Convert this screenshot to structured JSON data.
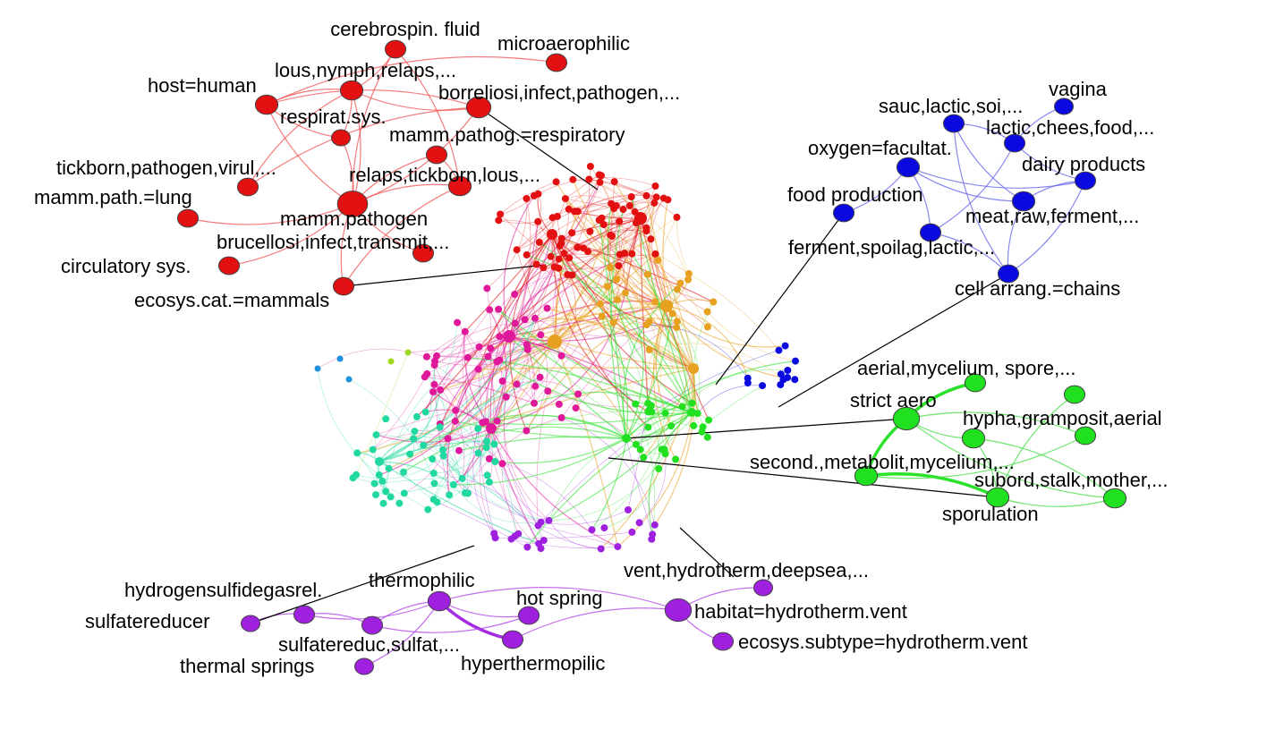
{
  "clusters": [
    {
      "id": "red",
      "color": "#e21010",
      "edge_color": "#f05050",
      "nodes": [
        "cerebrospin. fluid",
        "microaerophilic",
        "lous,nymph,relaps,...",
        "host=human",
        "borreliosi,infect,pathogen,...",
        "respirat.sys.",
        "mamm.pathog.=respiratory",
        "tickborn,pathogen,virul,...",
        "relaps,tickborn,lous,...",
        "mamm.path.=lung",
        "mamm.pathogen",
        "brucellosi,infect,transmit,...",
        "circulatory sys.",
        "ecosys.cat.=mammals"
      ],
      "edges": [
        [
          0,
          2
        ],
        [
          0,
          10
        ],
        [
          0,
          8
        ],
        [
          2,
          3
        ],
        [
          2,
          5
        ],
        [
          2,
          4
        ],
        [
          2,
          10
        ],
        [
          3,
          5
        ],
        [
          3,
          4
        ],
        [
          3,
          10
        ],
        [
          4,
          10
        ],
        [
          4,
          7
        ],
        [
          5,
          10
        ],
        [
          6,
          10
        ],
        [
          6,
          8
        ],
        [
          8,
          10
        ],
        [
          10,
          9
        ],
        [
          10,
          11
        ],
        [
          10,
          12
        ],
        [
          10,
          13
        ],
        [
          13,
          8
        ],
        [
          1,
          3
        ],
        [
          7,
          2
        ]
      ]
    },
    {
      "id": "blue",
      "color": "#0a0ae0",
      "edge_color": "#6060ee",
      "nodes": [
        "vagina",
        "sauc,lactic,soi,...",
        "lactic,chees,food,...",
        "oxygen=facultat.",
        "dairy products",
        "food production",
        "meat,raw,ferment,...",
        "ferment,spoilag,lactic,...",
        "cell arrang.=chains"
      ],
      "edges": [
        [
          3,
          5
        ],
        [
          3,
          6
        ],
        [
          3,
          7
        ],
        [
          3,
          4
        ],
        [
          1,
          2
        ],
        [
          1,
          8
        ],
        [
          2,
          0
        ],
        [
          2,
          4
        ],
        [
          2,
          7
        ],
        [
          4,
          6
        ],
        [
          4,
          8
        ],
        [
          6,
          8
        ],
        [
          7,
          8
        ],
        [
          1,
          6
        ]
      ]
    },
    {
      "id": "green",
      "color": "#20e020",
      "edge_color": "#40dd40",
      "nodes": [
        "aerial,mycelium, spore,...",
        "",
        "strict aero",
        "hypha,gramposit,aerial",
        "",
        "second.,metabolit,mycelium,...",
        "sporulation",
        "subord,stalk,mother,..."
      ],
      "edges": [
        [
          2,
          0
        ],
        [
          2,
          5
        ],
        [
          5,
          6
        ],
        [
          2,
          3
        ],
        [
          2,
          4
        ],
        [
          2,
          7
        ],
        [
          3,
          6
        ],
        [
          5,
          4
        ],
        [
          6,
          1
        ],
        [
          6,
          7
        ],
        [
          3,
          7
        ]
      ],
      "thick_edges": [
        [
          2,
          0
        ],
        [
          2,
          5
        ],
        [
          5,
          6
        ]
      ]
    },
    {
      "id": "purple",
      "color": "#a020e0",
      "edge_color": "#b040e8",
      "nodes": [
        "vent,hydrotherm,deepsea,...",
        "thermophilic",
        "hydrogensulfidegasrel.",
        "hot spring",
        "habitat=hydrotherm.vent",
        "sulfatereducer",
        "sulfatereduc,sulfat,...",
        "hyperthermopilic",
        "ecosys.subtype=hydrotherm.vent",
        "thermal springs"
      ],
      "edges": [
        [
          5,
          2
        ],
        [
          2,
          1
        ],
        [
          2,
          6
        ],
        [
          1,
          6
        ],
        [
          1,
          9
        ],
        [
          1,
          7
        ],
        [
          1,
          4
        ],
        [
          1,
          3
        ],
        [
          4,
          0
        ],
        [
          4,
          8
        ],
        [
          7,
          4
        ],
        [
          6,
          3
        ]
      ],
      "thick_edges": [
        [
          1,
          7
        ]
      ]
    }
  ],
  "core_cluster_colors": {
    "red": "#e21010",
    "orange": "#e8a020",
    "magenta": "#e0189a",
    "teal": "#20d8a0",
    "green": "#20e020",
    "blue": "#0a0ae0",
    "purple": "#a020e0",
    "cyan": "#2090e0",
    "lime": "#a0d820"
  }
}
